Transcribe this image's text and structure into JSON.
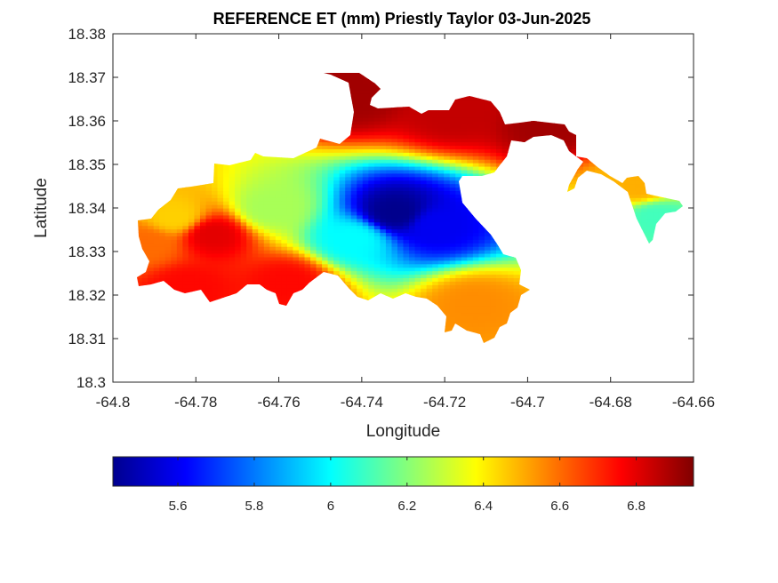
{
  "chart_data": {
    "type": "heatmap",
    "title": "REFERENCE ET (mm) Priestly Taylor 03-Jun-2025",
    "xlabel": "Longitude",
    "ylabel": "Latitude",
    "xlim": [
      -64.8,
      -64.66
    ],
    "ylim": [
      18.3,
      18.38
    ],
    "xticks": [
      -64.8,
      -64.78,
      -64.76,
      -64.74,
      -64.72,
      -64.7,
      -64.68,
      -64.66
    ],
    "xtick_labels": [
      "-64.8",
      "-64.78",
      "-64.76",
      "-64.74",
      "-64.72",
      "-64.7",
      "-64.68",
      "-64.66"
    ],
    "yticks": [
      18.3,
      18.31,
      18.32,
      18.33,
      18.34,
      18.35,
      18.36,
      18.37,
      18.38
    ],
    "ytick_labels": [
      "18.3",
      "18.31",
      "18.32",
      "18.33",
      "18.34",
      "18.35",
      "18.36",
      "18.37",
      "18.38"
    ],
    "colormap": "jet",
    "colorbar": {
      "placement": "bottom",
      "range": [
        5.43,
        6.95
      ],
      "ticks": [
        5.6,
        5.8,
        6,
        6.2,
        6.4,
        6.6,
        6.8
      ],
      "tick_labels": [
        "5.6",
        "5.8",
        "6",
        "6.2",
        "6.4",
        "6.6",
        "6.8"
      ]
    },
    "grid": false,
    "regions": [
      {
        "name": "west-edge",
        "lon": -64.792,
        "lat": 18.332,
        "value": 6.6
      },
      {
        "name": "west-yellow",
        "lon": -64.785,
        "lat": 18.338,
        "value": 6.45
      },
      {
        "name": "west-red",
        "lon": -64.776,
        "lat": 18.334,
        "value": 6.8
      },
      {
        "name": "south-west-red",
        "lon": -64.782,
        "lat": 18.322,
        "value": 6.75
      },
      {
        "name": "center-green",
        "lon": -64.762,
        "lat": 18.34,
        "value": 6.25
      },
      {
        "name": "center-south-red",
        "lon": -64.758,
        "lat": 18.323,
        "value": 6.75
      },
      {
        "name": "blue-core",
        "lon": -64.732,
        "lat": 18.339,
        "value": 5.45
      },
      {
        "name": "blue-east",
        "lon": -64.722,
        "lat": 18.336,
        "value": 5.6
      },
      {
        "name": "cyan-ring",
        "lon": -64.742,
        "lat": 18.333,
        "value": 6.0
      },
      {
        "name": "north-arm-red",
        "lon": -64.742,
        "lat": 18.366,
        "value": 6.9
      },
      {
        "name": "north-east-red",
        "lon": -64.718,
        "lat": 18.362,
        "value": 6.85
      },
      {
        "name": "east-strip",
        "lon": -64.695,
        "lat": 18.359,
        "value": 6.9
      },
      {
        "name": "south-east-orange",
        "lon": -64.713,
        "lat": 18.318,
        "value": 6.55
      },
      {
        "name": "far-east-island",
        "lon": -64.669,
        "lat": 18.338,
        "value": 6.1
      },
      {
        "name": "far-east-island-edge",
        "lon": -64.673,
        "lat": 18.345,
        "value": 6.5
      }
    ]
  }
}
